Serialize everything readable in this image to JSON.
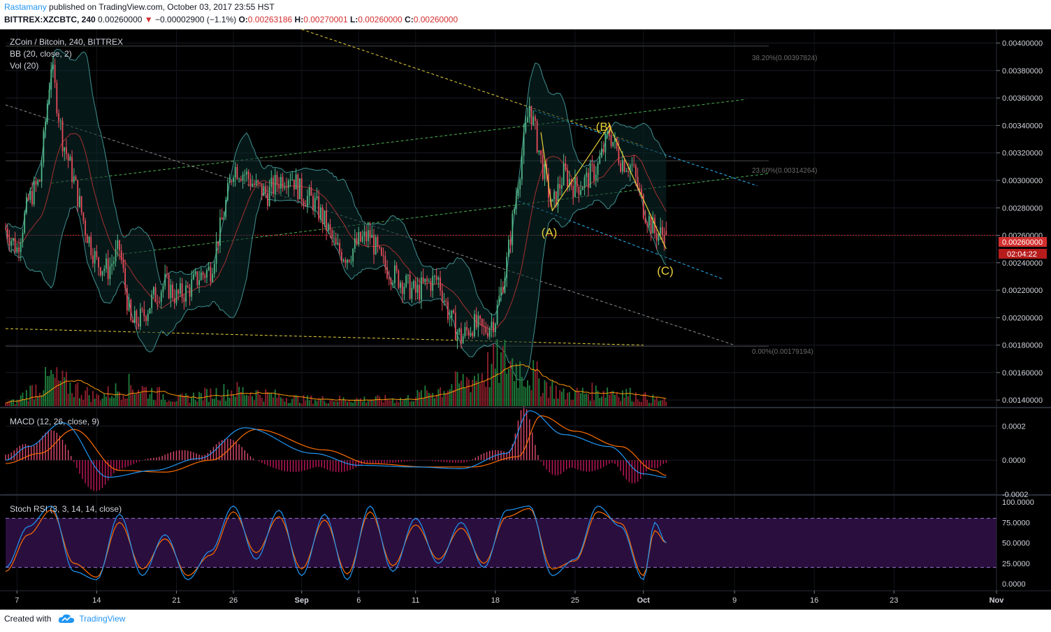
{
  "header": {
    "author": "Rastamany",
    "published_text": "published on TradingView.com, October 03, 2017 23:55 HST",
    "symbol": "BITTREX:XZCBTC, 240",
    "last": "0.00260000",
    "change_arrow": "▼",
    "change": "−0.00002900 (−1.1%)",
    "o_label": "O:",
    "o_value": "0.00263186",
    "h_label": "H:",
    "h_value": "0.00270001",
    "l_label": "L:",
    "l_value": "0.00260000",
    "c_label": "C:",
    "c_value": "0.00260000"
  },
  "legend": {
    "pair": "ZCoin / Bitcoin, 240, BITTREX",
    "bb": "BB (20, close, 2)",
    "vol": "Vol (20)",
    "macd": "MACD (12, 26, close, 9)",
    "stoch": "Stoch RSI (3, 3, 14, 14, close)"
  },
  "price_axis": {
    "ticks": [
      "0.00400000",
      "0.00380000",
      "0.00360000",
      "0.00340000",
      "0.00320000",
      "0.00300000",
      "0.00280000",
      "0.00260000",
      "0.00240000",
      "0.00220000",
      "0.00200000",
      "0.00180000",
      "0.00160000",
      "0.00140000"
    ],
    "current_price_label": "0.00260000",
    "countdown_label": "02:04:22"
  },
  "macd_axis": {
    "ticks": [
      "0.0002",
      "0.0000",
      "-0.0002"
    ]
  },
  "stoch_axis": {
    "ticks": [
      "100.0000",
      "75.0000",
      "50.0000",
      "25.0000",
      "0.0000"
    ]
  },
  "time_axis": {
    "ticks": [
      "7",
      "14",
      "21",
      "26",
      "Sep",
      "6",
      "11",
      "18",
      "25",
      "Oct",
      "9",
      "16",
      "23",
      "Nov"
    ]
  },
  "fib_labels": [
    "38.20%(0.00397824)",
    "23.60%(0.00314264)",
    "0.00%(0.00179194)"
  ],
  "wave_labels": [
    "(A)",
    "(B)",
    "(C)"
  ],
  "footer": {
    "created_with": "Created with",
    "brand": "TradingView"
  },
  "colors": {
    "background": "#000000",
    "up": "#53b987",
    "down": "#eb4d5c",
    "bb_fill": "#0b2a2b",
    "bb_band": "#3f8f8f",
    "bb_basis": "#a5312f",
    "macd_line": "#2196f3",
    "signal_line": "#ff6d00",
    "stoch_k": "#2196f3",
    "stoch_d": "#ff6d00",
    "stoch_band": "#2a0f3e",
    "current_price": "#d32f2f",
    "fib_line": "#787878",
    "trend_yellow": "#e6d03a",
    "trend_green": "#4caf50",
    "trend_cyan": "#29b6f6",
    "trend_grey": "#8a8a8a"
  },
  "chart_data": [
    {
      "type": "candlestick",
      "title": "ZCoin / Bitcoin, 240, BITTREX",
      "ylim": [
        0.00135,
        0.0041
      ],
      "x_range": [
        "2017-08-06",
        "2017-11-01"
      ],
      "current_price": 0.0026,
      "fib_levels": [
        {
          "ratio": "38.20%",
          "price": 0.00397824
        },
        {
          "ratio": "23.60%",
          "price": 0.00314264
        },
        {
          "ratio": "0.00%",
          "price": 0.00179194
        }
      ],
      "price_path": [
        [
          "2017-08-06",
          0.00265
        ],
        [
          "2017-08-07",
          0.0025
        ],
        [
          "2017-08-08",
          0.00285
        ],
        [
          "2017-08-09",
          0.003
        ],
        [
          "2017-08-10",
          0.00385
        ],
        [
          "2017-08-11",
          0.0033
        ],
        [
          "2017-08-12",
          0.003
        ],
        [
          "2017-08-13",
          0.00265
        ],
        [
          "2017-08-14",
          0.0024
        ],
        [
          "2017-08-15",
          0.00235
        ],
        [
          "2017-08-16",
          0.0025
        ],
        [
          "2017-08-17",
          0.00195
        ],
        [
          "2017-08-18",
          0.002
        ],
        [
          "2017-08-19",
          0.00215
        ],
        [
          "2017-08-20",
          0.00225
        ],
        [
          "2017-08-21",
          0.00215
        ],
        [
          "2017-08-22",
          0.0022
        ],
        [
          "2017-08-23",
          0.0023
        ],
        [
          "2017-08-24",
          0.00235
        ],
        [
          "2017-08-25",
          0.0027
        ],
        [
          "2017-08-26",
          0.0031
        ],
        [
          "2017-08-27",
          0.00305
        ],
        [
          "2017-08-28",
          0.00295
        ],
        [
          "2017-08-29",
          0.0029
        ],
        [
          "2017-08-30",
          0.003
        ],
        [
          "2017-08-31",
          0.00305
        ],
        [
          "2017-09-01",
          0.0029
        ],
        [
          "2017-09-02",
          0.00285
        ],
        [
          "2017-09-03",
          0.0027
        ],
        [
          "2017-09-04",
          0.0025
        ],
        [
          "2017-09-05",
          0.00245
        ],
        [
          "2017-09-06",
          0.00255
        ],
        [
          "2017-09-07",
          0.0026
        ],
        [
          "2017-09-08",
          0.0024
        ],
        [
          "2017-09-09",
          0.00232
        ],
        [
          "2017-09-10",
          0.00225
        ],
        [
          "2017-09-11",
          0.00218
        ],
        [
          "2017-09-12",
          0.00225
        ],
        [
          "2017-09-13",
          0.00228
        ],
        [
          "2017-09-14",
          0.002
        ],
        [
          "2017-09-15",
          0.00185
        ],
        [
          "2017-09-16",
          0.00195
        ],
        [
          "2017-09-17",
          0.0019
        ],
        [
          "2017-09-18",
          0.002
        ],
        [
          "2017-09-19",
          0.0024
        ],
        [
          "2017-09-20",
          0.003
        ],
        [
          "2017-09-21",
          0.00355
        ],
        [
          "2017-09-22",
          0.00315
        ],
        [
          "2017-09-23",
          0.0028
        ],
        [
          "2017-09-24",
          0.00305
        ],
        [
          "2017-09-25",
          0.00295
        ],
        [
          "2017-09-26",
          0.003
        ],
        [
          "2017-09-27",
          0.0031
        ],
        [
          "2017-09-28",
          0.00335
        ],
        [
          "2017-09-29",
          0.00315
        ],
        [
          "2017-09-30",
          0.0031
        ],
        [
          "2017-10-01",
          0.0028
        ],
        [
          "2017-10-02",
          0.00262
        ],
        [
          "2017-10-03",
          0.0026
        ]
      ]
    },
    {
      "type": "bar",
      "title": "Vol (20)",
      "relative_volume_path": [
        [
          "2017-08-07",
          0.15
        ],
        [
          "2017-08-10",
          0.6
        ],
        [
          "2017-08-14",
          0.2
        ],
        [
          "2017-08-17",
          0.45
        ],
        [
          "2017-08-21",
          0.15
        ],
        [
          "2017-08-26",
          0.35
        ],
        [
          "2017-09-01",
          0.15
        ],
        [
          "2017-09-10",
          0.15
        ],
        [
          "2017-09-15",
          0.5
        ],
        [
          "2017-09-19",
          1.0
        ],
        [
          "2017-09-21",
          0.7
        ],
        [
          "2017-09-24",
          0.25
        ],
        [
          "2017-09-28",
          0.35
        ],
        [
          "2017-10-03",
          0.1
        ]
      ]
    },
    {
      "type": "line",
      "title": "MACD (12, 26, close, 9)",
      "ylim": [
        -0.0002,
        0.0003
      ],
      "series": [
        {
          "name": "MACD",
          "values": [
            [
              "2017-08-06",
              0.0
            ],
            [
              "2017-08-08",
              8e-05
            ],
            [
              "2017-08-11",
              0.00022
            ],
            [
              "2017-08-15",
              -0.0001
            ],
            [
              "2017-08-19",
              -6e-05
            ],
            [
              "2017-08-23",
              1e-05
            ],
            [
              "2017-08-27",
              0.00019
            ],
            [
              "2017-09-02",
              4e-05
            ],
            [
              "2017-09-06",
              -3e-05
            ],
            [
              "2017-09-11",
              -4e-05
            ],
            [
              "2017-09-15",
              -5e-05
            ],
            [
              "2017-09-19",
              4e-05
            ],
            [
              "2017-09-21",
              0.00029
            ],
            [
              "2017-09-24",
              0.00015
            ],
            [
              "2017-09-28",
              8e-05
            ],
            [
              "2017-10-01",
              -8e-05
            ],
            [
              "2017-10-03",
              -0.0001
            ]
          ]
        },
        {
          "name": "Signal",
          "values": [
            [
              "2017-08-06",
              -2e-05
            ],
            [
              "2017-08-09",
              4e-05
            ],
            [
              "2017-08-12",
              0.00018
            ],
            [
              "2017-08-16",
              -6e-05
            ],
            [
              "2017-08-20",
              -7e-05
            ],
            [
              "2017-08-24",
              0.0
            ],
            [
              "2017-08-28",
              0.00018
            ],
            [
              "2017-09-03",
              6e-05
            ],
            [
              "2017-09-07",
              -2e-05
            ],
            [
              "2017-09-12",
              -4e-05
            ],
            [
              "2017-09-16",
              -4e-05
            ],
            [
              "2017-09-20",
              2e-05
            ],
            [
              "2017-09-22",
              0.00026
            ],
            [
              "2017-09-25",
              0.00017
            ],
            [
              "2017-09-29",
              8e-05
            ],
            [
              "2017-10-02",
              -6e-05
            ],
            [
              "2017-10-03",
              -9e-05
            ]
          ]
        }
      ]
    },
    {
      "type": "line",
      "title": "Stoch RSI (3, 3, 14, 14, close)",
      "ylim": [
        0,
        100
      ],
      "bands": [
        20,
        80
      ],
      "series": [
        {
          "name": "K",
          "values": [
            [
              "2017-08-06",
              20
            ],
            [
              "2017-08-08",
              70
            ],
            [
              "2017-08-10",
              95
            ],
            [
              "2017-08-12",
              15
            ],
            [
              "2017-08-14",
              5
            ],
            [
              "2017-08-16",
              85
            ],
            [
              "2017-08-18",
              10
            ],
            [
              "2017-08-20",
              60
            ],
            [
              "2017-08-22",
              5
            ],
            [
              "2017-08-24",
              40
            ],
            [
              "2017-08-26",
              95
            ],
            [
              "2017-08-28",
              30
            ],
            [
              "2017-08-30",
              90
            ],
            [
              "2017-09-01",
              10
            ],
            [
              "2017-09-03",
              85
            ],
            [
              "2017-09-05",
              5
            ],
            [
              "2017-09-07",
              95
            ],
            [
              "2017-09-09",
              15
            ],
            [
              "2017-09-11",
              80
            ],
            [
              "2017-09-13",
              25
            ],
            [
              "2017-09-15",
              75
            ],
            [
              "2017-09-17",
              20
            ],
            [
              "2017-09-19",
              90
            ],
            [
              "2017-09-21",
              95
            ],
            [
              "2017-09-23",
              10
            ],
            [
              "2017-09-25",
              30
            ],
            [
              "2017-09-27",
              95
            ],
            [
              "2017-09-29",
              70
            ],
            [
              "2017-10-01",
              5
            ],
            [
              "2017-10-02",
              75
            ],
            [
              "2017-10-03",
              50
            ]
          ]
        },
        {
          "name": "D",
          "values": [
            [
              "2017-08-06",
              15
            ],
            [
              "2017-08-08",
              60
            ],
            [
              "2017-08-10",
              90
            ],
            [
              "2017-08-12",
              25
            ],
            [
              "2017-08-14",
              8
            ],
            [
              "2017-08-16",
              75
            ],
            [
              "2017-08-18",
              18
            ],
            [
              "2017-08-20",
              55
            ],
            [
              "2017-08-22",
              10
            ],
            [
              "2017-08-24",
              35
            ],
            [
              "2017-08-26",
              88
            ],
            [
              "2017-08-28",
              38
            ],
            [
              "2017-08-30",
              82
            ],
            [
              "2017-09-01",
              18
            ],
            [
              "2017-09-03",
              78
            ],
            [
              "2017-09-05",
              12
            ],
            [
              "2017-09-07",
              88
            ],
            [
              "2017-09-09",
              22
            ],
            [
              "2017-09-11",
              72
            ],
            [
              "2017-09-13",
              30
            ],
            [
              "2017-09-15",
              68
            ],
            [
              "2017-09-17",
              25
            ],
            [
              "2017-09-19",
              82
            ],
            [
              "2017-09-21",
              92
            ],
            [
              "2017-09-23",
              18
            ],
            [
              "2017-09-25",
              28
            ],
            [
              "2017-09-27",
              88
            ],
            [
              "2017-09-29",
              74
            ],
            [
              "2017-10-01",
              10
            ],
            [
              "2017-10-02",
              65
            ],
            [
              "2017-10-03",
              50
            ]
          ]
        }
      ]
    }
  ]
}
